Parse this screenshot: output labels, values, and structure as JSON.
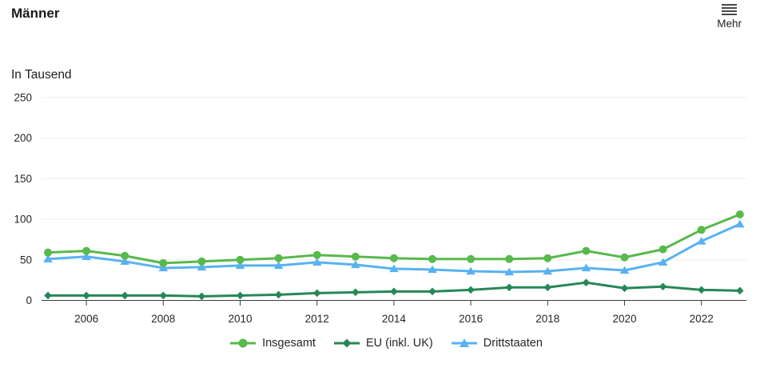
{
  "menu": {
    "label": "Mehr"
  },
  "chart_data": {
    "type": "line",
    "title": "Männer",
    "unit_label": "In Tausend",
    "x": [
      2005,
      2006,
      2007,
      2008,
      2009,
      2010,
      2011,
      2012,
      2013,
      2014,
      2015,
      2016,
      2017,
      2018,
      2019,
      2020,
      2021,
      2022,
      2023
    ],
    "x_tick_labels": [
      "2006",
      "2008",
      "2010",
      "2012",
      "2014",
      "2016",
      "2018",
      "2020",
      "2022"
    ],
    "y_ticks": [
      0,
      50,
      100,
      150,
      200,
      250
    ],
    "ylim": [
      0,
      250
    ],
    "grid": "horizontal-only",
    "legend_position": "bottom-center",
    "colors": {
      "axis_line": "#3b3b3b",
      "grid_line": "#ededed",
      "tick_text": "#262626"
    },
    "series": [
      {
        "name": "Insgesamt",
        "color": "#58b94c",
        "marker": "circle",
        "values": [
          59,
          61,
          55,
          46,
          48,
          50,
          52,
          56,
          54,
          52,
          51,
          51,
          51,
          52,
          61,
          53,
          63,
          87,
          106
        ]
      },
      {
        "name": "EU (inkl. UK)",
        "color": "#268756",
        "marker": "diamond",
        "values": [
          6,
          6,
          6,
          6,
          5,
          6,
          7,
          9,
          10,
          11,
          11,
          13,
          16,
          16,
          22,
          15,
          17,
          13,
          12
        ]
      },
      {
        "name": "Drittstaaten",
        "color": "#58b2f2",
        "marker": "triangle",
        "values": [
          51,
          54,
          48,
          40,
          41,
          43,
          43,
          47,
          44,
          39,
          38,
          36,
          35,
          36,
          40,
          37,
          47,
          73,
          94
        ]
      }
    ]
  }
}
